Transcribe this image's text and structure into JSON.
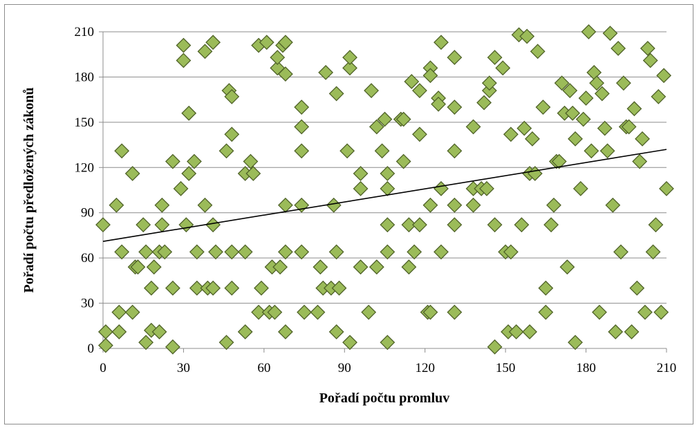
{
  "chart_data": {
    "type": "scatter",
    "xlabel": "Pořadí počtu promluv",
    "ylabel": "Pořadí počtu předložených zákonů",
    "xlim": [
      0,
      210
    ],
    "ylim": [
      0,
      210
    ],
    "x_ticks": [
      "0",
      "30",
      "60",
      "90",
      "120",
      "150",
      "180",
      "210"
    ],
    "y_ticks": [
      "0",
      "30",
      "60",
      "90",
      "120",
      "150",
      "180",
      "210"
    ],
    "grid": "horizontal",
    "legend": "none",
    "marker": "diamond",
    "marker_color": "#9bbb59",
    "marker_edge": "#4f6228",
    "trendline": {
      "type": "linear",
      "x": [
        0,
        210
      ],
      "y": [
        71,
        132
      ],
      "color": "#000000"
    },
    "points": [
      [
        0,
        82
      ],
      [
        1,
        2
      ],
      [
        1,
        11
      ],
      [
        5,
        95
      ],
      [
        6,
        11
      ],
      [
        6,
        24
      ],
      [
        7,
        64
      ],
      [
        7,
        131
      ],
      [
        11,
        116
      ],
      [
        11,
        24
      ],
      [
        12,
        54
      ],
      [
        13,
        54
      ],
      [
        15,
        82
      ],
      [
        16,
        64
      ],
      [
        16,
        4
      ],
      [
        18,
        40
      ],
      [
        18,
        12
      ],
      [
        19,
        54
      ],
      [
        21,
        11
      ],
      [
        21,
        64
      ],
      [
        22,
        82
      ],
      [
        22,
        95
      ],
      [
        23,
        64
      ],
      [
        26,
        124
      ],
      [
        26,
        40
      ],
      [
        26,
        1
      ],
      [
        29,
        106
      ],
      [
        30,
        201
      ],
      [
        30,
        191
      ],
      [
        31,
        82
      ],
      [
        32,
        116
      ],
      [
        32,
        156
      ],
      [
        34,
        124
      ],
      [
        35,
        64
      ],
      [
        35,
        40
      ],
      [
        38,
        197
      ],
      [
        38,
        95
      ],
      [
        39,
        40
      ],
      [
        41,
        203
      ],
      [
        41,
        40
      ],
      [
        41,
        82
      ],
      [
        42,
        64
      ],
      [
        46,
        4
      ],
      [
        46,
        131
      ],
      [
        47,
        171
      ],
      [
        48,
        167
      ],
      [
        48,
        142
      ],
      [
        48,
        64
      ],
      [
        48,
        40
      ],
      [
        53,
        116
      ],
      [
        53,
        64
      ],
      [
        53,
        11
      ],
      [
        55,
        124
      ],
      [
        56,
        116
      ],
      [
        58,
        24
      ],
      [
        58,
        201
      ],
      [
        59,
        40
      ],
      [
        61,
        203
      ],
      [
        62,
        24
      ],
      [
        63,
        54
      ],
      [
        64,
        24
      ],
      [
        65,
        186
      ],
      [
        65,
        193
      ],
      [
        66,
        54
      ],
      [
        67,
        201
      ],
      [
        68,
        64
      ],
      [
        68,
        11
      ],
      [
        68,
        95
      ],
      [
        68,
        182
      ],
      [
        68,
        203
      ],
      [
        74,
        95
      ],
      [
        74,
        147
      ],
      [
        74,
        160
      ],
      [
        74,
        131
      ],
      [
        74,
        64
      ],
      [
        75,
        24
      ],
      [
        80,
        24
      ],
      [
        81,
        54
      ],
      [
        82,
        40
      ],
      [
        83,
        183
      ],
      [
        85,
        40
      ],
      [
        86,
        95
      ],
      [
        87,
        11
      ],
      [
        87,
        64
      ],
      [
        87,
        169
      ],
      [
        88,
        40
      ],
      [
        91,
        131
      ],
      [
        92,
        4
      ],
      [
        92,
        186
      ],
      [
        92,
        193
      ],
      [
        96,
        54
      ],
      [
        96,
        106
      ],
      [
        96,
        116
      ],
      [
        99,
        24
      ],
      [
        100,
        171
      ],
      [
        102,
        54
      ],
      [
        102,
        147
      ],
      [
        104,
        131
      ],
      [
        105,
        152
      ],
      [
        106,
        116
      ],
      [
        106,
        106
      ],
      [
        106,
        64
      ],
      [
        106,
        82
      ],
      [
        106,
        4
      ],
      [
        111,
        152
      ],
      [
        112,
        124
      ],
      [
        112,
        152
      ],
      [
        114,
        54
      ],
      [
        114,
        82
      ],
      [
        115,
        177
      ],
      [
        116,
        64
      ],
      [
        118,
        171
      ],
      [
        118,
        82
      ],
      [
        118,
        142
      ],
      [
        121,
        24
      ],
      [
        122,
        24
      ],
      [
        122,
        95
      ],
      [
        122,
        186
      ],
      [
        122,
        181
      ],
      [
        125,
        166
      ],
      [
        125,
        162
      ],
      [
        126,
        106
      ],
      [
        126,
        64
      ],
      [
        126,
        203
      ],
      [
        131,
        95
      ],
      [
        131,
        160
      ],
      [
        131,
        193
      ],
      [
        131,
        131
      ],
      [
        131,
        82
      ],
      [
        131,
        24
      ],
      [
        138,
        106
      ],
      [
        138,
        95
      ],
      [
        138,
        147
      ],
      [
        141,
        106
      ],
      [
        142,
        163
      ],
      [
        143,
        106
      ],
      [
        144,
        171
      ],
      [
        144,
        176
      ],
      [
        146,
        193
      ],
      [
        146,
        82
      ],
      [
        146,
        1
      ],
      [
        149,
        186
      ],
      [
        150,
        64
      ],
      [
        151,
        11
      ],
      [
        152,
        64
      ],
      [
        152,
        142
      ],
      [
        154,
        11
      ],
      [
        155,
        208
      ],
      [
        156,
        82
      ],
      [
        157,
        146
      ],
      [
        158,
        207
      ],
      [
        159,
        116
      ],
      [
        159,
        11
      ],
      [
        160,
        139
      ],
      [
        161,
        116
      ],
      [
        162,
        197
      ],
      [
        164,
        160
      ],
      [
        165,
        40
      ],
      [
        165,
        24
      ],
      [
        167,
        82
      ],
      [
        168,
        95
      ],
      [
        169,
        124
      ],
      [
        170,
        124
      ],
      [
        171,
        176
      ],
      [
        172,
        156
      ],
      [
        173,
        54
      ],
      [
        174,
        171
      ],
      [
        175,
        156
      ],
      [
        176,
        139
      ],
      [
        176,
        4
      ],
      [
        178,
        106
      ],
      [
        179,
        152
      ],
      [
        180,
        166
      ],
      [
        181,
        210
      ],
      [
        182,
        131
      ],
      [
        183,
        183
      ],
      [
        184,
        176
      ],
      [
        185,
        24
      ],
      [
        186,
        169
      ],
      [
        187,
        146
      ],
      [
        188,
        131
      ],
      [
        189,
        209
      ],
      [
        190,
        95
      ],
      [
        191,
        11
      ],
      [
        192,
        199
      ],
      [
        193,
        64
      ],
      [
        194,
        176
      ],
      [
        195,
        147
      ],
      [
        196,
        147
      ],
      [
        197,
        11
      ],
      [
        198,
        159
      ],
      [
        199,
        40
      ],
      [
        200,
        124
      ],
      [
        201,
        139
      ],
      [
        202,
        24
      ],
      [
        203,
        199
      ],
      [
        204,
        191
      ],
      [
        205,
        64
      ],
      [
        206,
        82
      ],
      [
        207,
        167
      ],
      [
        208,
        24
      ],
      [
        209,
        181
      ],
      [
        210,
        106
      ]
    ]
  }
}
